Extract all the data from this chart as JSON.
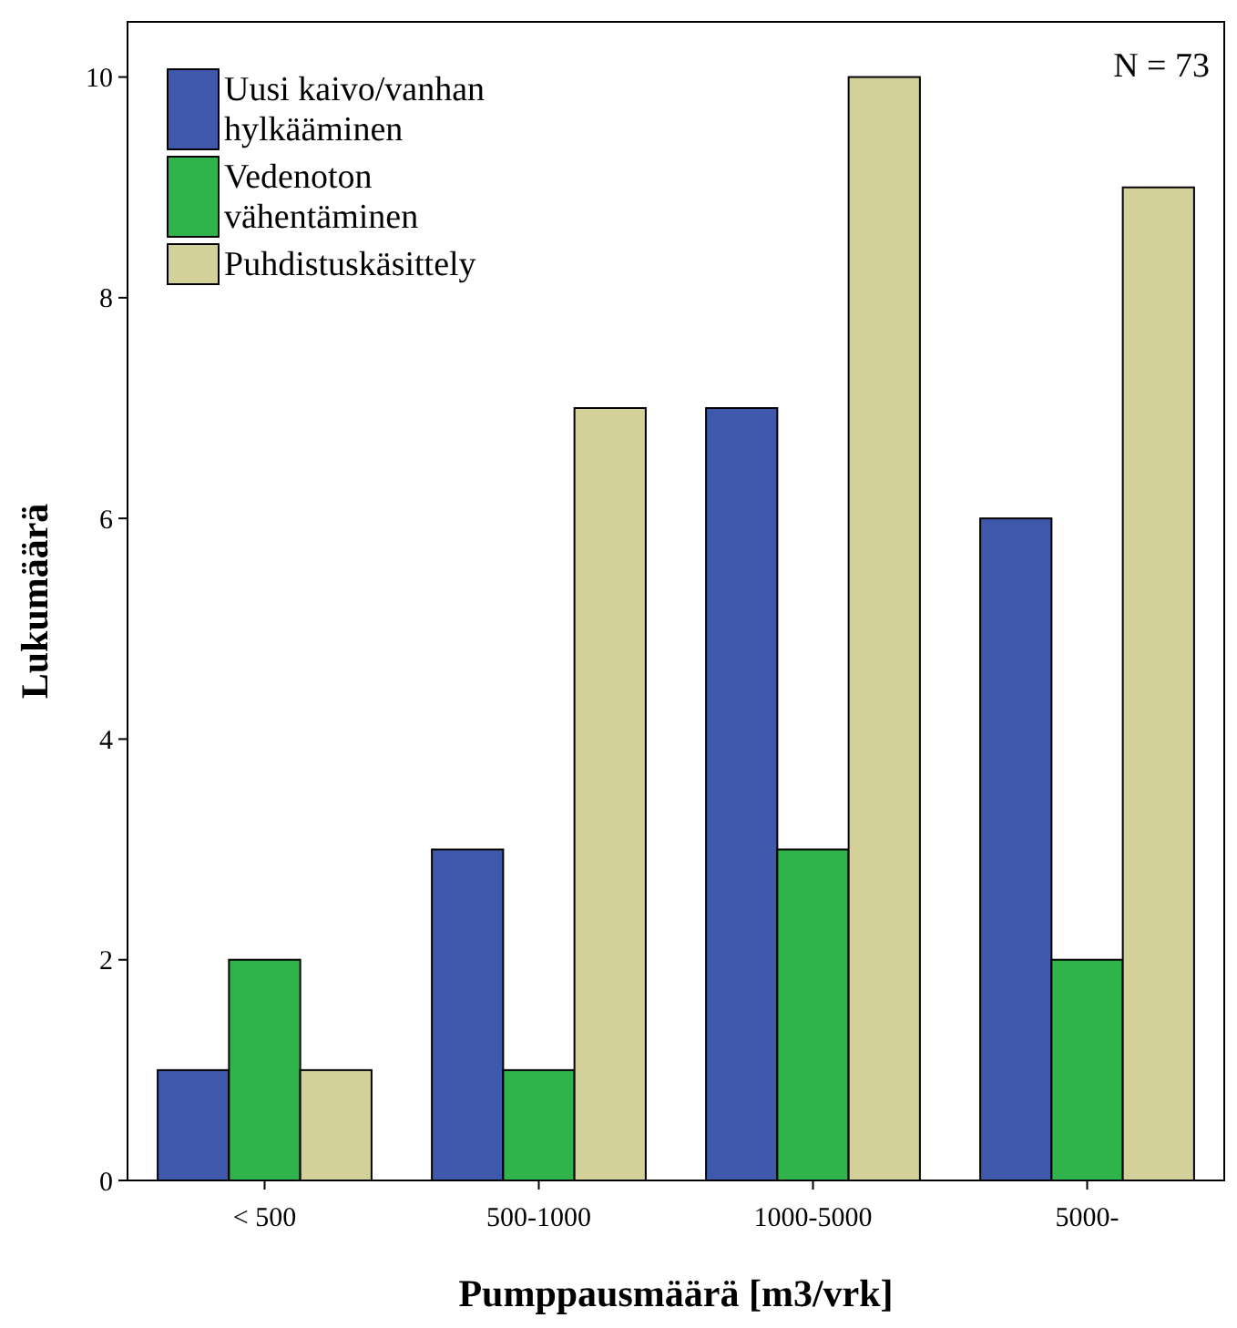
{
  "chart_data": {
    "type": "bar",
    "xlabel": "Pumppausmäärä [m3/vrk]",
    "ylabel": "Lukumäärä",
    "categories": [
      "< 500",
      "500-1000",
      "1000-5000",
      "5000-"
    ],
    "series": [
      {
        "name": "Uusi kaivo/vanhan hylkääminen",
        "color": "#3e58ac",
        "values": [
          1,
          3,
          7,
          6
        ]
      },
      {
        "name": "Vedenoton vähentäminen",
        "color": "#2fb34a",
        "values": [
          2,
          1,
          3,
          2
        ]
      },
      {
        "name": "Puhdistuskäsittely",
        "color": "#d4d09a",
        "values": [
          1,
          7,
          10,
          9
        ]
      }
    ],
    "ylim": [
      0,
      10.5
    ],
    "yticks": [
      0,
      2,
      4,
      6,
      8,
      10
    ],
    "grid": false,
    "legend": "top left",
    "annotations": [
      "N = 73"
    ]
  }
}
